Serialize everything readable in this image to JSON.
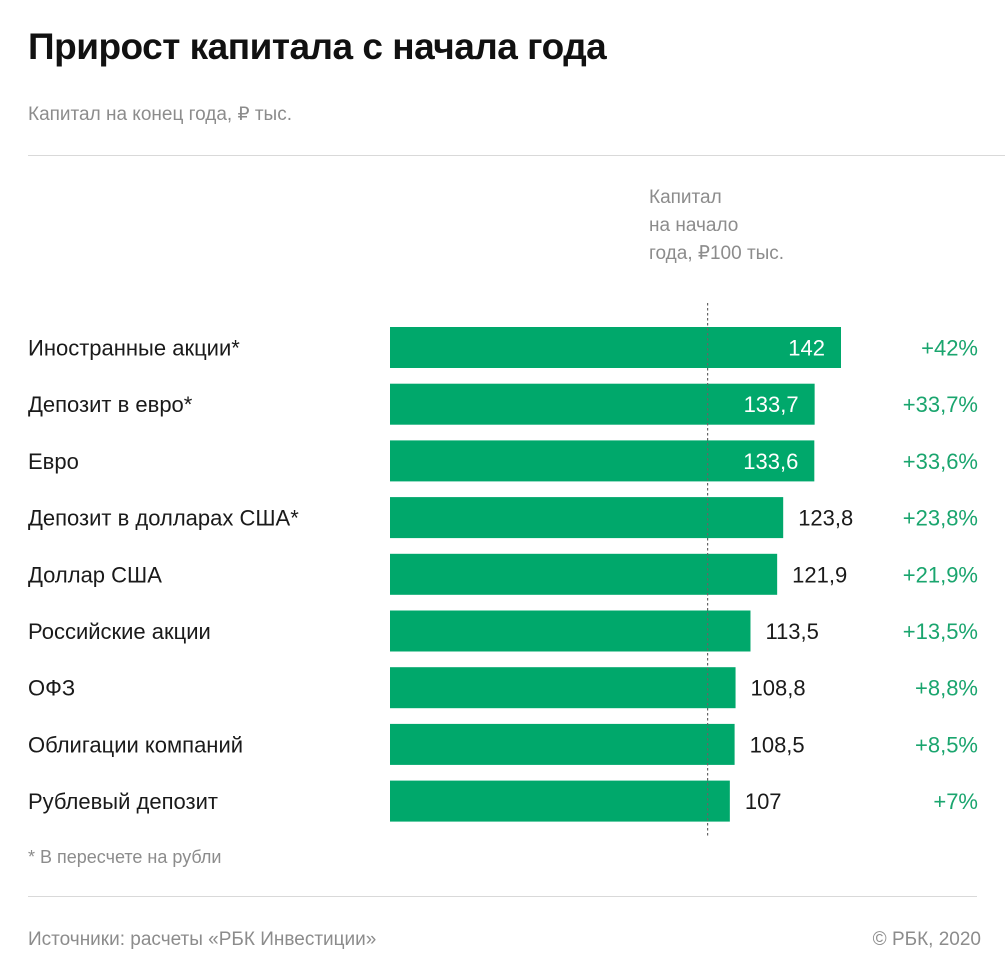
{
  "header": {
    "title": "Прирост капитала с начала года",
    "subtitle": "Капитал на конец года, ₽ тыс."
  },
  "chart_data": {
    "type": "bar",
    "orientation": "horizontal",
    "title": "Прирост капитала с начала года",
    "subtitle": "Капитал на конец года, ₽ тыс.",
    "categories": [
      "Иностранные акции*",
      "Депозит в евро*",
      "Евро",
      "Депозит в долларах США*",
      "Доллар США",
      "Российские акции",
      "ОФЗ",
      "Облигации компаний",
      "Рублевый депозит"
    ],
    "values": [
      142,
      133.7,
      133.6,
      123.8,
      121.9,
      113.5,
      108.8,
      108.5,
      107
    ],
    "value_labels": [
      "142",
      "133,7",
      "133,6",
      "123,8",
      "121,9",
      "113,5",
      "108,8",
      "108,5",
      "107"
    ],
    "change_labels": [
      "+42%",
      "+33,7%",
      "+33,6%",
      "+23,8%",
      "+21,9%",
      "+13,5%",
      "+8,8%",
      "+8,5%",
      "+7%"
    ],
    "xlim": [
      0,
      142
    ],
    "reference_value": 100,
    "reference_label": [
      "Капитал",
      "на начало",
      "года, ₽100 тыс."
    ],
    "colors": {
      "bar": "#00a86b",
      "change": "#1aa56e",
      "label": "#1a1a1a",
      "inside_label": "#ffffff",
      "reference_line": "#666666",
      "reference_text": "#8c8c8c"
    }
  },
  "footnote": "* В пересчете на рубли",
  "footer": {
    "source": "Источники: расчеты «РБК Инвестиции»",
    "copyright": "© РБК, 2020"
  }
}
